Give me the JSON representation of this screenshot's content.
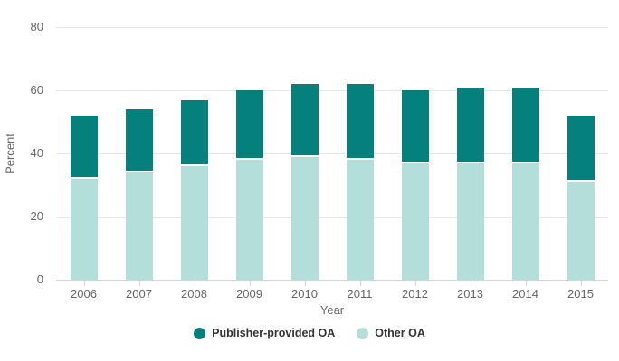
{
  "chart_data": {
    "type": "bar",
    "stacked": true,
    "title": "",
    "categories": [
      "2006",
      "2007",
      "2008",
      "2009",
      "2010",
      "2011",
      "2012",
      "2013",
      "2014",
      "2015"
    ],
    "series": [
      {
        "name": "Publisher-provided OA",
        "color": "#06807d",
        "values": [
          20,
          20,
          21,
          22,
          23,
          24,
          23,
          24,
          24,
          21
        ]
      },
      {
        "name": "Other OA",
        "color": "#b3ded9",
        "values": [
          32,
          34,
          36,
          38,
          39,
          38,
          37,
          37,
          37,
          31
        ]
      }
    ],
    "stack_order_bottom_to_top": [
      "Other OA",
      "Publisher-provided OA"
    ],
    "totals": [
      52,
      54,
      57,
      60,
      62,
      62,
      60,
      61,
      61,
      52
    ],
    "xlabel": "Year",
    "ylabel": "Percent",
    "ylim": [
      0,
      80
    ],
    "yticks": [
      0,
      20,
      40,
      60,
      80
    ],
    "grid": true,
    "legend_position": "bottom"
  },
  "colors": {
    "publisher_provided_oa": "#06807d",
    "other_oa": "#b3ded9",
    "gridline": "#e6e6e6",
    "axis_line": "#ccd6eb",
    "axis_text": "#666666",
    "legend_text": "#333333",
    "background": "#ffffff"
  }
}
